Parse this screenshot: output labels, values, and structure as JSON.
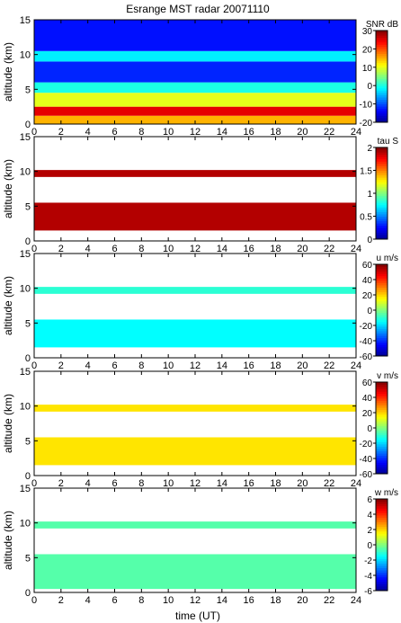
{
  "title": "Esrange MST radar 20071110",
  "xlabel": "time (UT)",
  "chart_data": [
    {
      "type": "heatmap",
      "ylabel": "altitude (km)",
      "colorbar_label": "SNR dB",
      "xlim": [
        0,
        24
      ],
      "ylim": [
        0,
        15
      ],
      "xticks": [
        "0",
        "2",
        "4",
        "6",
        "8",
        "10",
        "12",
        "14",
        "16",
        "18",
        "20",
        "22",
        "24"
      ],
      "yticks": [
        "0",
        "5",
        "10",
        "15"
      ],
      "cticks": [
        "-20",
        "-10",
        "0",
        "10",
        "20",
        "30"
      ],
      "clim": [
        -20,
        30
      ],
      "layers": [
        {
          "alt": [
            0,
            1.2
          ],
          "value": 15
        },
        {
          "alt": [
            1.2,
            2.5
          ],
          "value": 25
        },
        {
          "alt": [
            2.5,
            4.5
          ],
          "value": 10
        },
        {
          "alt": [
            4.5,
            6
          ],
          "value": 0
        },
        {
          "alt": [
            6,
            9
          ],
          "value": -12
        },
        {
          "alt": [
            9,
            10.5
          ],
          "value": -2
        },
        {
          "alt": [
            10.5,
            15
          ],
          "value": -13
        }
      ]
    },
    {
      "type": "heatmap",
      "ylabel": "altitude (km)",
      "colorbar_label": "tau S",
      "xlim": [
        0,
        24
      ],
      "ylim": [
        0,
        15
      ],
      "xticks": [
        "0",
        "2",
        "4",
        "6",
        "8",
        "10",
        "12",
        "14",
        "16",
        "18",
        "20",
        "22",
        "24"
      ],
      "yticks": [
        "0",
        "5",
        "10",
        "15"
      ],
      "cticks": [
        "0",
        "0.5",
        "1",
        "1.5",
        "2"
      ],
      "clim": [
        0,
        2
      ],
      "layers": [
        {
          "alt": [
            1.5,
            5.5
          ],
          "value": 1.9
        },
        {
          "alt": [
            9.2,
            10.2
          ],
          "value": 1.9
        }
      ]
    },
    {
      "type": "heatmap",
      "ylabel": "altitude (km)",
      "colorbar_label": "u m/s",
      "xlim": [
        0,
        24
      ],
      "ylim": [
        0,
        15
      ],
      "xticks": [
        "0",
        "2",
        "4",
        "6",
        "8",
        "10",
        "12",
        "14",
        "16",
        "18",
        "20",
        "22",
        "24"
      ],
      "yticks": [
        "0",
        "5",
        "10",
        "15"
      ],
      "cticks": [
        "-60",
        "-40",
        "-20",
        "0",
        "20",
        "40",
        "60"
      ],
      "clim": [
        -60,
        60
      ],
      "layers": [
        {
          "alt": [
            1.5,
            5.5
          ],
          "value": -15
        },
        {
          "alt": [
            9.2,
            10.2
          ],
          "value": -10
        }
      ]
    },
    {
      "type": "heatmap",
      "ylabel": "altitude (km)",
      "colorbar_label": "v m/s",
      "xlim": [
        0,
        24
      ],
      "ylim": [
        0,
        15
      ],
      "xticks": [
        "0",
        "2",
        "4",
        "6",
        "8",
        "10",
        "12",
        "14",
        "16",
        "18",
        "20",
        "22",
        "24"
      ],
      "yticks": [
        "0",
        "5",
        "10",
        "15"
      ],
      "cticks": [
        "-60",
        "-40",
        "-20",
        "0",
        "20",
        "40",
        "60"
      ],
      "clim": [
        -60,
        60
      ],
      "layers": [
        {
          "alt": [
            1.5,
            5.5
          ],
          "value": 18
        },
        {
          "alt": [
            9.2,
            10.2
          ],
          "value": 18
        }
      ]
    },
    {
      "type": "heatmap",
      "ylabel": "altitude (km)",
      "colorbar_label": "w m/s",
      "xlim": [
        0,
        24
      ],
      "ylim": [
        0,
        15
      ],
      "xticks": [
        "0",
        "2",
        "4",
        "6",
        "8",
        "10",
        "12",
        "14",
        "16",
        "18",
        "20",
        "22",
        "24"
      ],
      "yticks": [
        "0",
        "5",
        "10",
        "15"
      ],
      "cticks": [
        "-6",
        "-4",
        "-2",
        "0",
        "2",
        "4",
        "6"
      ],
      "clim": [
        -6,
        6
      ],
      "layers": [
        {
          "alt": [
            0.5,
            5.5
          ],
          "value": -0.5
        },
        {
          "alt": [
            9.2,
            10.2
          ],
          "value": -0.5
        }
      ]
    }
  ]
}
